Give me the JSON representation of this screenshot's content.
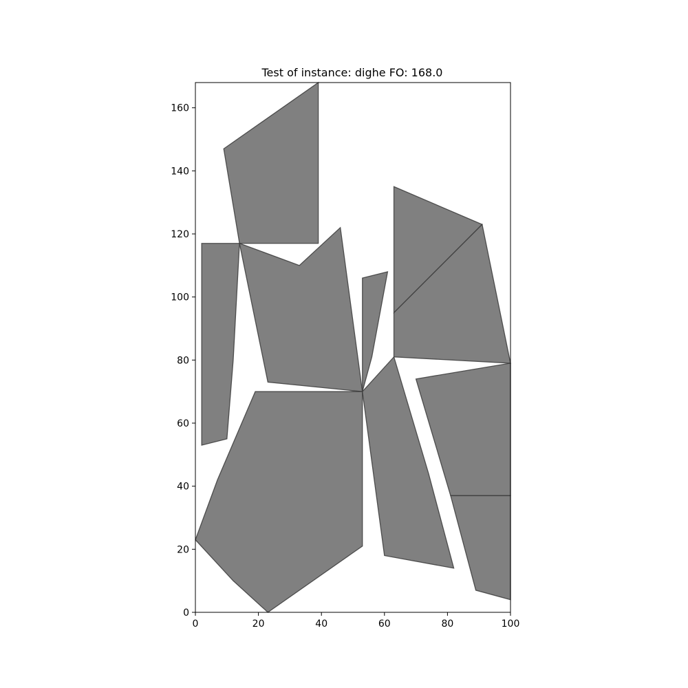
{
  "chart_data": {
    "type": "polygon_packing",
    "title": "Test of instance: dighe  FO: 168.0",
    "xlim": [
      0,
      100
    ],
    "ylim": [
      0,
      168
    ],
    "x_ticks": [
      0,
      20,
      40,
      60,
      80,
      100
    ],
    "y_ticks": [
      0,
      20,
      40,
      60,
      80,
      100,
      120,
      140,
      160
    ],
    "grid": false,
    "fill_color": "#808080",
    "edge_color": "#3a3a3a",
    "polygons": [
      {
        "name": "piece-1",
        "points": [
          [
            9,
            147
          ],
          [
            39,
            168
          ],
          [
            39,
            117
          ],
          [
            14,
            117
          ]
        ]
      },
      {
        "name": "piece-2",
        "points": [
          [
            2,
            117
          ],
          [
            14,
            117
          ],
          [
            12,
            80
          ],
          [
            10,
            55
          ],
          [
            2,
            53
          ]
        ]
      },
      {
        "name": "piece-3",
        "points": [
          [
            14,
            117
          ],
          [
            33,
            110
          ],
          [
            46,
            122
          ],
          [
            53,
            70
          ],
          [
            23,
            73
          ]
        ]
      },
      {
        "name": "piece-4",
        "points": [
          [
            53,
            106
          ],
          [
            61,
            108
          ],
          [
            56,
            81
          ],
          [
            53,
            70
          ]
        ]
      },
      {
        "name": "piece-5",
        "points": [
          [
            63,
            135
          ],
          [
            91,
            123
          ],
          [
            63,
            95
          ]
        ]
      },
      {
        "name": "piece-6",
        "points": [
          [
            63,
            95
          ],
          [
            91,
            123
          ],
          [
            100,
            79
          ],
          [
            63,
            81
          ]
        ]
      },
      {
        "name": "piece-7",
        "points": [
          [
            19,
            70
          ],
          [
            53,
            70
          ],
          [
            53,
            21
          ],
          [
            23,
            0
          ],
          [
            12,
            10
          ],
          [
            0,
            23
          ],
          [
            7,
            42
          ]
        ]
      },
      {
        "name": "piece-8",
        "points": [
          [
            53,
            70
          ],
          [
            63,
            81
          ],
          [
            74,
            44
          ],
          [
            82,
            14
          ],
          [
            60,
            18
          ]
        ]
      },
      {
        "name": "piece-9",
        "points": [
          [
            70,
            74
          ],
          [
            100,
            79
          ],
          [
            100,
            37
          ],
          [
            81,
            37
          ]
        ]
      },
      {
        "name": "piece-10",
        "points": [
          [
            81,
            37
          ],
          [
            100,
            37
          ],
          [
            100,
            4
          ],
          [
            89,
            7
          ]
        ]
      }
    ]
  }
}
